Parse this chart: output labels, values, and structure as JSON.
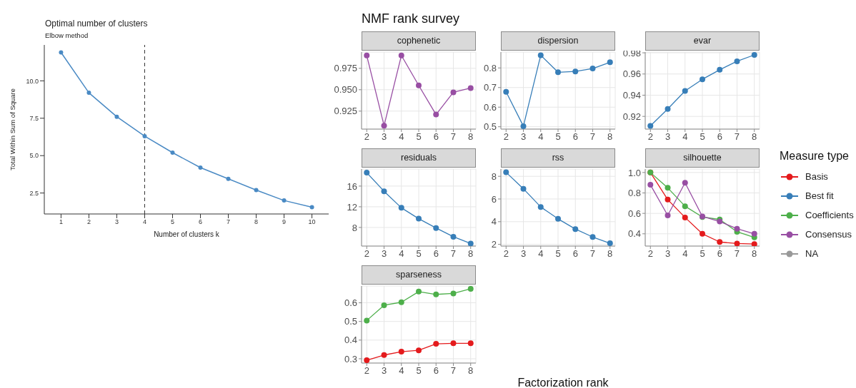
{
  "chart_data": [
    {
      "type": "line",
      "title": "Optimal number of clusters",
      "subtitle": "Elbow method",
      "xlabel": "Number of clusters k",
      "ylabel": "Total Within Sum of Square",
      "x": [
        1,
        2,
        3,
        4,
        5,
        6,
        7,
        8,
        9,
        10
      ],
      "values": [
        11.9,
        9.2,
        7.6,
        6.3,
        5.2,
        4.2,
        3.45,
        2.7,
        2.0,
        1.55
      ],
      "color": "#4a8ac4",
      "xlim": [
        0.4,
        10.6
      ],
      "xticks": [
        1,
        2,
        3,
        4,
        5,
        6,
        7,
        8,
        9,
        10
      ],
      "ylim": [
        1.1,
        12.4
      ],
      "yticks": [
        {
          "value": 2.5,
          "label": "2.5"
        },
        {
          "value": 5,
          "label": "5.0"
        },
        {
          "value": 7.5,
          "label": "7.5"
        },
        {
          "value": 10,
          "label": "10.0"
        }
      ],
      "ref_lines": [
        {
          "axis": "x",
          "value": 4,
          "label": null,
          "color": "#333333",
          "line_style": "dashed"
        }
      ],
      "marker": "circle",
      "line_style": "solid",
      "grid": false
    },
    {
      "type": "line",
      "title": "cophenetic",
      "x": [
        2,
        3,
        4,
        5,
        6,
        7,
        8
      ],
      "series": [
        {
          "color": "#984ea3",
          "values": [
            0.99,
            0.908,
            0.99,
            0.955,
            0.921,
            0.947,
            0.952
          ]
        }
      ],
      "xlim": [
        1.7,
        8.3
      ],
      "xticks": [
        2,
        3,
        4,
        5,
        6,
        7,
        8
      ],
      "ylim": [
        0.904,
        0.994
      ],
      "yticks": [
        {
          "value": 0.925,
          "label": "0.925"
        },
        {
          "value": 0.95,
          "label": "0.950"
        },
        {
          "value": 0.975,
          "label": "0.975"
        }
      ],
      "marker": "circle",
      "line_style": "solid",
      "grid": true
    },
    {
      "type": "line",
      "title": "dispersion",
      "x": [
        2,
        3,
        4,
        5,
        6,
        7,
        8
      ],
      "series": [
        {
          "color": "#377eb8",
          "values": [
            0.678,
            0.503,
            0.865,
            0.778,
            0.782,
            0.797,
            0.829
          ]
        }
      ],
      "xlim": [
        1.7,
        8.3
      ],
      "xticks": [
        2,
        3,
        4,
        5,
        6,
        7,
        8
      ],
      "ylim": [
        0.488,
        0.881
      ],
      "yticks": [
        0.5,
        0.6,
        0.7,
        0.8
      ],
      "marker": "circle",
      "line_style": "solid",
      "grid": true
    },
    {
      "type": "line",
      "title": "evar",
      "x": [
        2,
        3,
        4,
        5,
        6,
        7,
        8
      ],
      "series": [
        {
          "color": "#377eb8",
          "values": [
            0.911,
            0.927,
            0.944,
            0.955,
            0.964,
            0.972,
            0.978
          ]
        }
      ],
      "xlim": [
        1.7,
        8.3
      ],
      "xticks": [
        2,
        3,
        4,
        5,
        6,
        7,
        8
      ],
      "ylim": [
        0.908,
        0.9807
      ],
      "yticks": [
        0.92,
        0.94,
        0.96,
        0.98
      ],
      "marker": "circle",
      "line_style": "solid",
      "grid": true
    },
    {
      "type": "line",
      "title": "residuals",
      "x": [
        2,
        3,
        4,
        5,
        6,
        7,
        8
      ],
      "series": [
        {
          "color": "#377eb8",
          "values": [
            18.6,
            15.0,
            11.8,
            9.7,
            7.9,
            6.2,
            4.9
          ]
        }
      ],
      "xlim": [
        1.7,
        8.3
      ],
      "xticks": [
        2,
        3,
        4,
        5,
        6,
        7,
        8
      ],
      "ylim": [
        4.4,
        19.3
      ],
      "yticks": [
        8,
        12,
        16
      ],
      "marker": "circle",
      "line_style": "solid",
      "grid": true
    },
    {
      "type": "line",
      "title": "rss",
      "x": [
        2,
        3,
        4,
        5,
        6,
        7,
        8
      ],
      "series": [
        {
          "color": "#377eb8",
          "values": [
            8.35,
            6.9,
            5.3,
            4.25,
            3.35,
            2.65,
            2.1
          ]
        }
      ],
      "xlim": [
        1.7,
        8.3
      ],
      "xticks": [
        2,
        3,
        4,
        5,
        6,
        7,
        8
      ],
      "ylim": [
        1.85,
        8.64
      ],
      "yticks": [
        2,
        4,
        6,
        8
      ],
      "marker": "circle",
      "line_style": "solid",
      "grid": true
    },
    {
      "type": "line",
      "title": "silhouette",
      "x": [
        2,
        3,
        4,
        5,
        6,
        7,
        8
      ],
      "series": [
        {
          "color": "#e41a1c",
          "values": [
            1.0,
            0.735,
            0.56,
            0.4,
            0.32,
            0.305,
            0.3
          ]
        },
        {
          "color": "#4daf4a",
          "values": [
            1.0,
            0.85,
            0.67,
            0.565,
            0.54,
            0.42,
            0.365
          ]
        },
        {
          "color": "#984ea3",
          "values": [
            0.88,
            0.58,
            0.9,
            0.57,
            0.52,
            0.45,
            0.4
          ]
        }
      ],
      "xlim": [
        1.7,
        8.3
      ],
      "xticks": [
        2,
        3,
        4,
        5,
        6,
        7,
        8
      ],
      "ylim": [
        0.28,
        1.034
      ],
      "yticks": [
        0.4,
        0.6,
        0.8,
        {
          "value": 1,
          "label": "1.0"
        }
      ],
      "marker": "circle",
      "line_style": "solid",
      "grid": true
    },
    {
      "type": "line",
      "title": "sparseness",
      "x": [
        2,
        3,
        4,
        5,
        6,
        7,
        8
      ],
      "series": [
        {
          "color": "#e41a1c",
          "values": [
            0.292,
            0.32,
            0.338,
            0.345,
            0.38,
            0.383,
            0.383
          ]
        },
        {
          "color": "#4daf4a",
          "values": [
            0.505,
            0.587,
            0.603,
            0.66,
            0.645,
            0.65,
            0.675
          ]
        }
      ],
      "xlim": [
        1.7,
        8.3
      ],
      "xticks": [
        2,
        3,
        4,
        5,
        6,
        7,
        8
      ],
      "ylim": [
        0.277,
        0.69
      ],
      "yticks": [
        0.3,
        0.4,
        0.5,
        0.6
      ],
      "marker": "circle",
      "line_style": "solid",
      "grid": true
    },
    {
      "type": "other",
      "title": "NMF rank survey",
      "xlabel": "Factorization rank",
      "legend_title": "Measure type",
      "legend": "right",
      "series": [
        {
          "name": "Basis",
          "color": "#e41a1c"
        },
        {
          "name": "Best fit",
          "color": "#377eb8"
        },
        {
          "name": "Coefficients",
          "color": "#4daf4a"
        },
        {
          "name": "Consensus",
          "color": "#984ea3"
        },
        {
          "name": "NA",
          "color": "#999999"
        }
      ]
    }
  ]
}
